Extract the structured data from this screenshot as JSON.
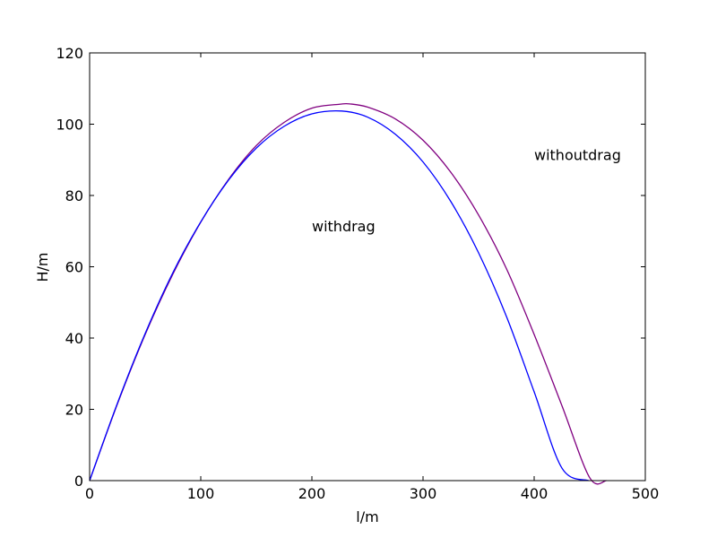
{
  "chart_data": {
    "type": "line",
    "title": "",
    "xlabel": "l/m",
    "ylabel": "H/m",
    "xlim": [
      0,
      500
    ],
    "ylim": [
      0,
      120
    ],
    "xticks": [
      0,
      100,
      200,
      300,
      400,
      500
    ],
    "yticks": [
      0,
      20,
      40,
      60,
      80,
      100,
      120
    ],
    "grid": false,
    "series": [
      {
        "color": "#800080",
        "x": [
          0,
          25,
          50,
          75,
          100,
          125,
          150,
          175,
          200,
          225,
          234,
          250,
          275,
          300,
          325,
          350,
          375,
          400,
          425,
          450,
          465
        ],
        "y": [
          0,
          21.5,
          41.0,
          58.0,
          72.5,
          84.5,
          94.0,
          100.5,
          104.5,
          105.6,
          105.7,
          104.8,
          101.5,
          95.5,
          86.5,
          74.5,
          59.5,
          41.0,
          21.0,
          0.8,
          0
        ]
      },
      {
        "color": "#0000ff",
        "x": [
          0,
          25,
          50,
          75,
          100,
          125,
          150,
          175,
          200,
          227,
          250,
          275,
          300,
          325,
          350,
          375,
          400,
          425,
          449
        ],
        "y": [
          0,
          21.7,
          41.3,
          58.4,
          72.6,
          84.3,
          93.3,
          99.4,
          102.9,
          103.7,
          102.0,
          97.2,
          89.4,
          78.3,
          63.9,
          46.1,
          24.9,
          3.5,
          0
        ]
      }
    ],
    "annotations": [
      {
        "text": "withoutdrag",
        "x": 400,
        "y": 90
      },
      {
        "text": "withdrag",
        "x": 200,
        "y": 70
      }
    ]
  }
}
